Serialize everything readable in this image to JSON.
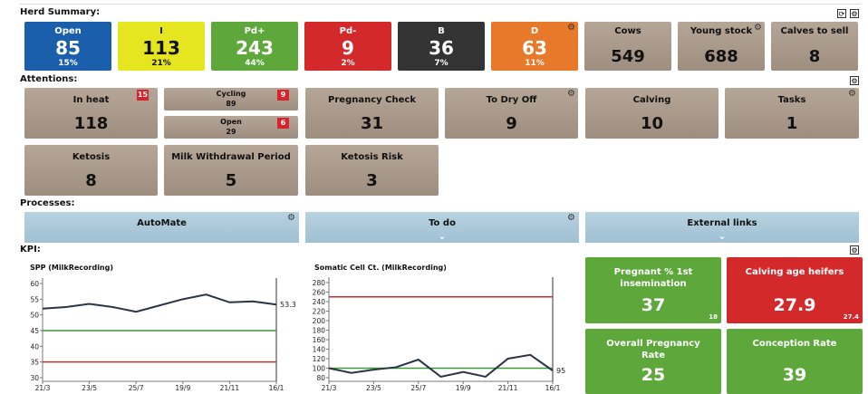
{
  "herd_summary": {
    "title": "Herd Summary:",
    "tiles": [
      {
        "label": "Open",
        "value": "85",
        "percent": "15%",
        "color": "#1b5eab"
      },
      {
        "label": "I",
        "value": "113",
        "percent": "21%",
        "color": "#e6e620"
      },
      {
        "label": "Pd+",
        "value": "243",
        "percent": "44%",
        "color": "#5ea83b"
      },
      {
        "label": "Pd-",
        "value": "9",
        "percent": "2%",
        "color": "#d3292b"
      },
      {
        "label": "B",
        "value": "36",
        "percent": "7%",
        "color": "#333333"
      },
      {
        "label": "D",
        "value": "63",
        "percent": "11%",
        "color": "#e8792a"
      },
      {
        "label": "Cows",
        "value": "549"
      },
      {
        "label": "Young stock",
        "value": "688"
      },
      {
        "label": "Calves to sell",
        "value": "8"
      }
    ]
  },
  "attentions": {
    "title": "Attentions:",
    "tiles": [
      {
        "label": "In heat",
        "value": "118",
        "badge": "15"
      },
      {
        "label": "Cycling",
        "value": "89",
        "badge": "9"
      },
      {
        "label": "Open",
        "value": "29",
        "badge": "6"
      },
      {
        "label": "Pregnancy Check",
        "value": "31"
      },
      {
        "label": "To Dry Off",
        "value": "9"
      },
      {
        "label": "Calving",
        "value": "10"
      },
      {
        "label": "Tasks",
        "value": "1"
      },
      {
        "label": "Ketosis",
        "value": "8"
      },
      {
        "label": "Milk Withdrawal Period",
        "value": "5"
      },
      {
        "label": "Ketosis Risk",
        "value": "3"
      }
    ]
  },
  "processes": {
    "title": "Processes:",
    "buttons": [
      "AutoMate",
      "To do",
      "External links"
    ]
  },
  "kpi": {
    "title": "KPI:",
    "tiles": [
      {
        "label": "Pregnant % 1st insemination",
        "value": "37",
        "sub": "18",
        "color": "#5ea83b"
      },
      {
        "label": "Calving age heifers",
        "value": "27.9",
        "sub": "27.4",
        "color": "#d3292b"
      },
      {
        "label": "Overall Pregnancy Rate",
        "value": "25",
        "color": "#5ea83b"
      },
      {
        "label": "Conception Rate",
        "value": "39",
        "color": "#5ea83b"
      }
    ]
  },
  "chart_data": [
    {
      "type": "line",
      "title": "SPP (MilkRecording)",
      "categories": [
        "21/3",
        null,
        "23/5",
        null,
        "25/7",
        null,
        "19/9",
        null,
        "21/11",
        null,
        "16/1"
      ],
      "values": [
        52,
        52.5,
        53.5,
        52.5,
        51,
        53,
        55,
        56.5,
        54,
        54.3,
        53.3
      ],
      "color": "#2b3446",
      "ylim": [
        30,
        60
      ],
      "yticks": [
        30,
        35,
        40,
        45,
        50,
        55,
        60
      ],
      "reference_lines": [
        {
          "value": 45,
          "color": "#3a9a3a"
        },
        {
          "value": 35,
          "color": "#c0302f"
        }
      ]
    },
    {
      "type": "line",
      "title": "Somatic Cell Ct. (MilkRecording)",
      "categories": [
        "21/3",
        null,
        "23/5",
        null,
        "25/7",
        null,
        "19/9",
        null,
        "21/11",
        null,
        "16/1"
      ],
      "values": [
        100,
        90,
        97,
        102,
        118,
        82,
        92,
        82,
        120,
        128,
        95
      ],
      "color": "#2b3446",
      "ylim": [
        80,
        280
      ],
      "yticks": [
        80,
        100,
        120,
        140,
        160,
        180,
        200,
        220,
        240,
        260,
        280
      ],
      "reference_lines": [
        {
          "value": 250,
          "color": "#c0302f"
        },
        {
          "value": 100,
          "color": "#3a9a3a"
        }
      ]
    }
  ]
}
